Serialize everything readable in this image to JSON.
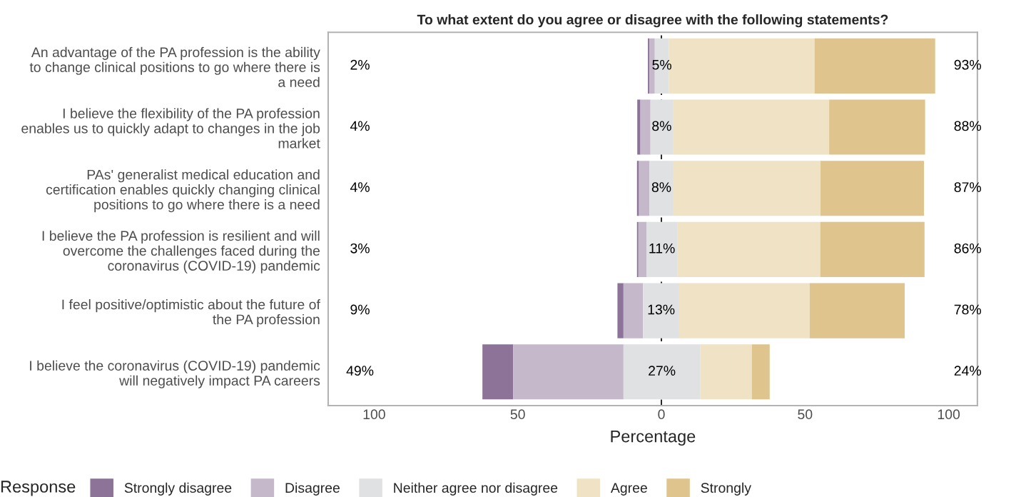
{
  "chart_data": {
    "type": "bar",
    "orientation": "horizontal",
    "title": "To what extent do you agree or disagree with the following statements?",
    "xlabel": "Percentage",
    "legend_title": "Response",
    "legend": "bottom",
    "categories": [
      "An advantage of the PA profession is the ability\nto change clinical positions to go where there is\na need",
      "I believe the flexibility of the PA profession\nenables us to quickly adapt to changes in the job\nmarket",
      "PAs' generalist medical education and\ncertification enables quickly changing clinical\npositions to go where there is a need",
      "I believe the PA profession is resilient and will\novercome the challenges faced during the\ncoronavirus (COVID-19) pandemic",
      "I feel positive/optimistic about the future of\nthe PA profession",
      "I believe the coronavirus (COVID-19) pandemic\nwill negatively impact PA careers"
    ],
    "series": [
      {
        "name": "Strongly disagree",
        "color": "#8c7397",
        "base": [
          -4.7,
          -8.4,
          -8.5,
          -8.5,
          -15.3,
          -62.3
        ],
        "values": [
          0.5,
          1.1,
          0.7,
          0.5,
          2.1,
          10.7
        ]
      },
      {
        "name": "Disagree",
        "color": "#c5b8ca",
        "base": [
          -4.2,
          -7.3,
          -7.8,
          -8.0,
          -13.2,
          -51.6
        ],
        "values": [
          1.9,
          3.5,
          3.6,
          2.8,
          6.8,
          38.4
        ]
      },
      {
        "name": "Neither agree nor disagree",
        "color": "#e0e1e3",
        "base": [
          -2.3,
          -3.8,
          -4.2,
          -5.2,
          -6.4,
          -13.2
        ],
        "values": [
          4.9,
          7.8,
          8.4,
          10.7,
          12.6,
          26.7
        ],
        "value_labels": [
          "5%",
          "8%",
          "8%",
          "11%",
          "13%",
          "27%"
        ]
      },
      {
        "name": "Agree",
        "color": "#efe2c5",
        "base": [
          2.6,
          4.0,
          4.2,
          5.5,
          6.2,
          13.5
        ],
        "values": [
          50.7,
          54.4,
          51.2,
          49.8,
          45.4,
          18.0
        ]
      },
      {
        "name": "Strongly",
        "color": "#dfc48d",
        "base": [
          53.3,
          58.4,
          55.4,
          55.3,
          51.6,
          31.5
        ],
        "values": [
          42.0,
          33.4,
          36.0,
          36.3,
          33.1,
          6.2
        ]
      }
    ],
    "xlim": [
      -116,
      110
    ],
    "xticks": [
      {
        "value": -100,
        "label": "100"
      },
      {
        "value": -50,
        "label": "50"
      },
      0,
      50,
      100
    ],
    "ref_lines": [
      {
        "axis": "x",
        "value": 0,
        "color": "#000000",
        "line_style": "dashed"
      }
    ],
    "annotations": [
      "2%",
      "4%",
      "4%",
      "3%",
      "9%",
      "49%",
      "93%",
      "88%",
      "87%",
      "86%",
      "78%",
      "24%"
    ]
  }
}
